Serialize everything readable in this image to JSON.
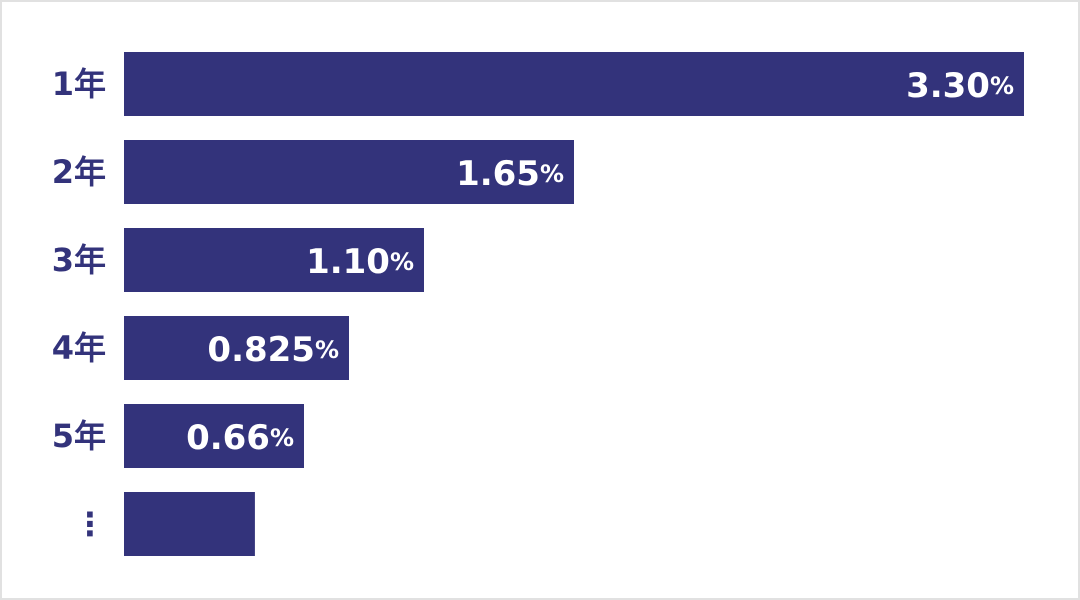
{
  "chart_data": {
    "type": "bar",
    "orientation": "horizontal",
    "categories": [
      "1年",
      "2年",
      "3年",
      "4年",
      "5年",
      "⋮"
    ],
    "values": [
      3.3,
      1.65,
      1.1,
      0.825,
      0.66,
      0.48
    ],
    "value_labels": [
      "3.30",
      "1.65",
      "1.10",
      "0.825",
      "0.66",
      ""
    ],
    "unit": "%",
    "xlim": [
      0,
      3.3
    ],
    "grid": false,
    "legend": "none",
    "title": "",
    "xlabel": "",
    "ylabel": ""
  },
  "colors": {
    "bar": "#33337b",
    "label": "#33337b",
    "value_text": "#ffffff",
    "frame": "#e1e1e1"
  }
}
